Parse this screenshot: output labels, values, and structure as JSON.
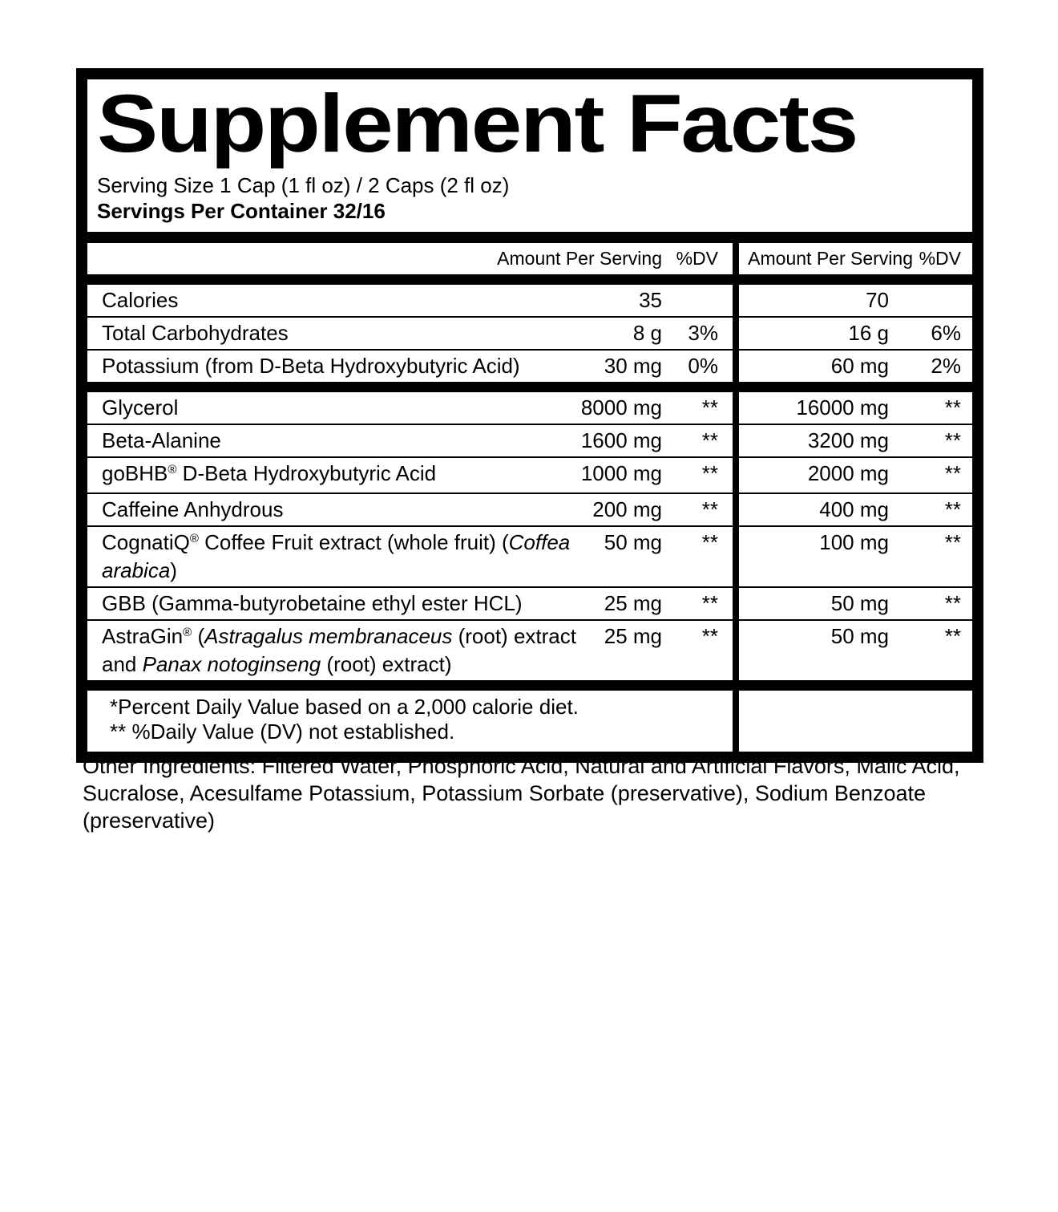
{
  "colors": {
    "ink": "#000000",
    "paper": "#ffffff"
  },
  "label": {
    "title": "Supplement Facts",
    "serving_size": "Serving Size 1 Cap (1 fl oz) / 2 Caps (2 fl oz)",
    "servings_per_container": "Servings Per Container 32/16",
    "column_headers": {
      "amount": "Amount Per Serving",
      "dv": "%DV"
    },
    "rows": [
      {
        "separator": "thick",
        "name_parts": [
          {
            "text": "Calories"
          }
        ],
        "amount1": "35",
        "dv1": "",
        "amount2": "70",
        "dv2": ""
      },
      {
        "separator": "thin",
        "name_parts": [
          {
            "text": "Total Carbohydrates"
          }
        ],
        "amount1": "8 g",
        "dv1": "3%",
        "amount2": "16 g",
        "dv2": "6%"
      },
      {
        "separator": "thin",
        "name_parts": [
          {
            "text": "Potassium (from D-Beta Hydroxybutyric Acid)"
          }
        ],
        "amount1": "30 mg",
        "dv1": "0%",
        "amount2": "60 mg",
        "dv2": "2%"
      },
      {
        "separator": "thick",
        "name_parts": [
          {
            "text": "Glycerol"
          }
        ],
        "amount1": "8000 mg",
        "dv1": "**",
        "amount2": "16000 mg",
        "dv2": "**"
      },
      {
        "separator": "thin",
        "name_parts": [
          {
            "text": "Beta-Alanine"
          }
        ],
        "amount1": "1600 mg",
        "dv1": "**",
        "amount2": "3200 mg",
        "dv2": "**"
      },
      {
        "separator": "thin",
        "name_parts": [
          {
            "text": "goBHB"
          },
          {
            "text": "®",
            "sup": true
          },
          {
            "text": " D-Beta Hydroxybutyric Acid"
          }
        ],
        "amount1": "1000 mg",
        "dv1": "**",
        "amount2": "2000 mg",
        "dv2": "**"
      },
      {
        "separator": "thin",
        "name_parts": [
          {
            "text": "Caffeine Anhydrous"
          }
        ],
        "amount1": "200 mg",
        "dv1": "**",
        "amount2": "400 mg",
        "dv2": "**"
      },
      {
        "separator": "thin",
        "name_parts": [
          {
            "text": "CognatiQ"
          },
          {
            "text": "®",
            "sup": true
          },
          {
            "text": " Coffee Fruit extract (whole fruit) ("
          },
          {
            "text": "Coffea arabica",
            "italic": true
          },
          {
            "text": ")"
          }
        ],
        "amount1": "50 mg",
        "dv1": "**",
        "amount2": "100 mg",
        "dv2": "**"
      },
      {
        "separator": "thin",
        "name_parts": [
          {
            "text": "GBB (Gamma-butyrobetaine ethyl ester HCL)"
          }
        ],
        "amount1": "25 mg",
        "dv1": "**",
        "amount2": "50 mg",
        "dv2": "**"
      },
      {
        "separator": "thin",
        "name_parts": [
          {
            "text": "AstraGin"
          },
          {
            "text": "®",
            "sup": true
          },
          {
            "text": " ("
          },
          {
            "text": "Astragalus membranaceus",
            "italic": true
          },
          {
            "text": " (root)"
          },
          {
            "text": " extract and "
          },
          {
            "text": "Panax notoginseng",
            "italic": true
          },
          {
            "text": " (root) extract)"
          }
        ],
        "amount1": "25 mg",
        "dv1": "**",
        "amount2": "50 mg",
        "dv2": "**"
      }
    ],
    "footnotes": [
      "*Percent Daily Value based on a 2,000 calorie diet.",
      "** %Daily Value (DV) not established."
    ]
  },
  "other_ingredients": "Other Ingredients: Filtered Water, Phosphoric Acid, Natural and Artificial Flavors, Malic Acid, Sucralose, Acesulfame Potassium, Potassium Sorbate (preservative), Sodium Benzoate (preservative)"
}
